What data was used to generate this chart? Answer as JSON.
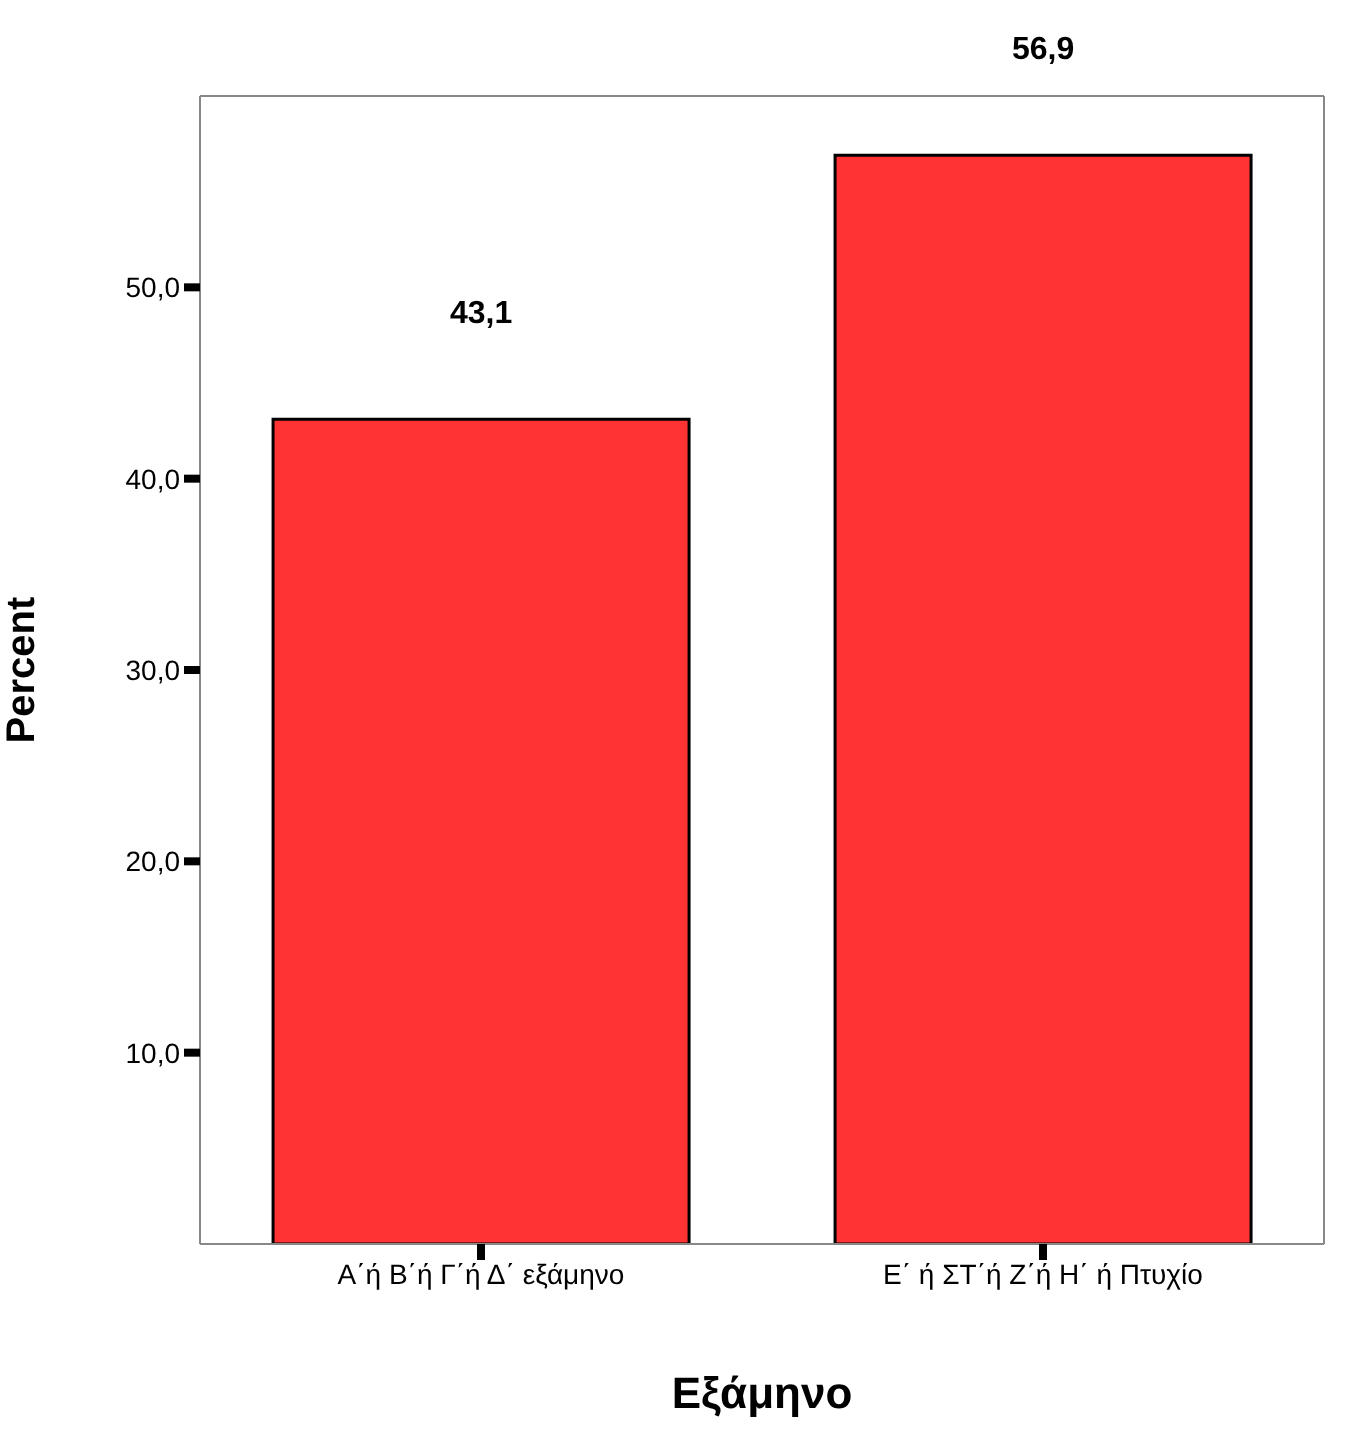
{
  "chart_data": {
    "type": "bar",
    "xlabel": "Εξάμηνο",
    "ylabel": "Percent",
    "categories": [
      "Α΄ή Β΄ή Γ΄ή Δ΄ εξάμηνο",
      "Ε΄ ή ΣΤ΄ή Ζ΄ή Η΄ ή Πτυχίο"
    ],
    "values": [
      43.1,
      56.9
    ],
    "value_labels": [
      "43,1",
      "56,9"
    ],
    "color": "#ff3333",
    "ylim": [
      0,
      60
    ],
    "yticks": [
      {
        "value": 10,
        "label": "10,0"
      },
      {
        "value": 20,
        "label": "20,0"
      },
      {
        "value": 30,
        "label": "30,0"
      },
      {
        "value": 40,
        "label": "40,0"
      },
      {
        "value": 50,
        "label": "50,0"
      }
    ],
    "grid": false
  }
}
